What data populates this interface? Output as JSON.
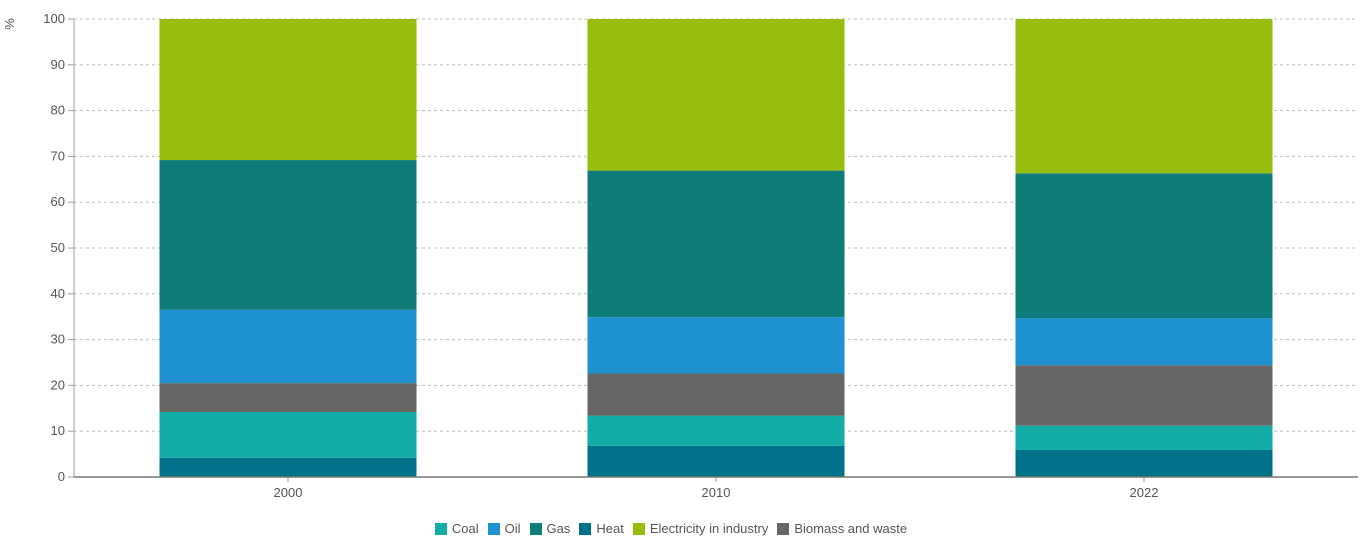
{
  "chart_data": {
    "type": "bar",
    "stacked": true,
    "ylabel": "%",
    "ylim": [
      0,
      100
    ],
    "yticks": [
      0,
      10,
      20,
      30,
      40,
      50,
      60,
      70,
      80,
      90,
      100
    ],
    "grid": true,
    "legend_position": "bottom",
    "categories": [
      "2000",
      "2010",
      "2022"
    ],
    "series": [
      {
        "name": "Heat",
        "color": "#00718a",
        "values": [
          4.2,
          6.8,
          5.9
        ]
      },
      {
        "name": "Coal",
        "color": "#11aca6",
        "values": [
          10.0,
          6.6,
          5.3
        ]
      },
      {
        "name": "Biomass and waste",
        "color": "#666666",
        "values": [
          6.3,
          9.2,
          13.2
        ]
      },
      {
        "name": "Oil",
        "color": "#1e91d0",
        "values": [
          16.0,
          12.3,
          10.3
        ]
      },
      {
        "name": "Gas",
        "color": "#0e7d7a",
        "values": [
          32.7,
          32.0,
          31.6
        ]
      },
      {
        "name": "Electricity in industry",
        "color": "#97bd0d",
        "values": [
          30.8,
          33.1,
          33.7
        ]
      }
    ],
    "legend_order": [
      "Coal",
      "Oil",
      "Gas",
      "Heat",
      "Electricity in industry",
      "Biomass and waste"
    ]
  }
}
